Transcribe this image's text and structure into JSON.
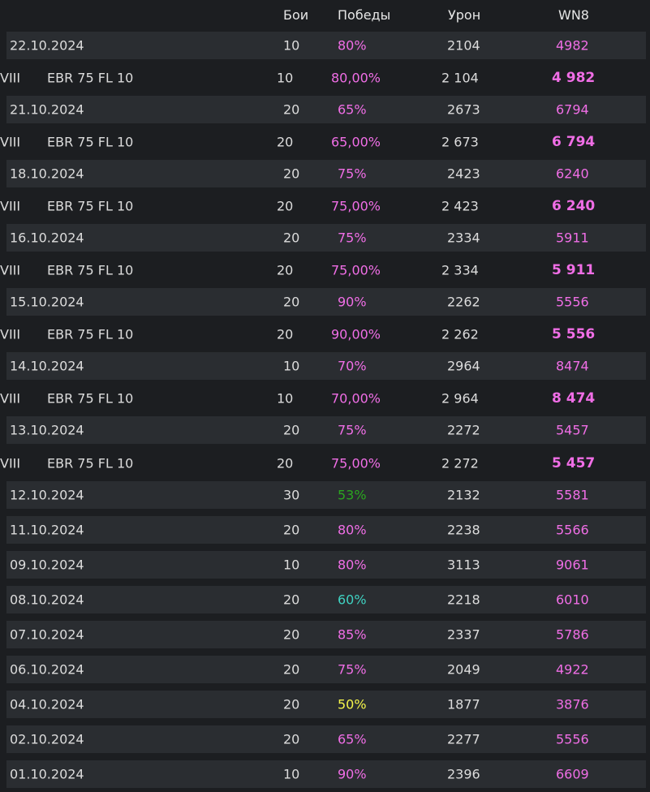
{
  "header": {
    "battles": "Бои",
    "wins": "Победы",
    "damage": "Урон",
    "wn8": "WN8"
  },
  "colors": {
    "purple": "#f06ee6",
    "green": "#2aa61f",
    "teal": "#3fd2c2",
    "yellow": "#f5f54a"
  },
  "rows": [
    {
      "type": "date",
      "date": "22.10.2024",
      "battles": "10",
      "wins": "80%",
      "damage": "2104",
      "wn8": "4982",
      "wins_color": "#f06ee6"
    },
    {
      "type": "tank",
      "tier": "VIII",
      "name": "EBR 75 FL 10",
      "battles": "10",
      "wins": "80,00%",
      "damage": "2 104",
      "wn8": "4 982",
      "wins_color": "#f06ee6"
    },
    {
      "type": "date",
      "date": "21.10.2024",
      "battles": "20",
      "wins": "65%",
      "damage": "2673",
      "wn8": "6794",
      "wins_color": "#f06ee6"
    },
    {
      "type": "tank",
      "tier": "VIII",
      "name": "EBR 75 FL 10",
      "battles": "20",
      "wins": "65,00%",
      "damage": "2 673",
      "wn8": "6 794",
      "wins_color": "#f06ee6"
    },
    {
      "type": "date",
      "date": "18.10.2024",
      "battles": "20",
      "wins": "75%",
      "damage": "2423",
      "wn8": "6240",
      "wins_color": "#f06ee6"
    },
    {
      "type": "tank",
      "tier": "VIII",
      "name": "EBR 75 FL 10",
      "battles": "20",
      "wins": "75,00%",
      "damage": "2 423",
      "wn8": "6 240",
      "wins_color": "#f06ee6"
    },
    {
      "type": "date",
      "date": "16.10.2024",
      "battles": "20",
      "wins": "75%",
      "damage": "2334",
      "wn8": "5911",
      "wins_color": "#f06ee6"
    },
    {
      "type": "tank",
      "tier": "VIII",
      "name": "EBR 75 FL 10",
      "battles": "20",
      "wins": "75,00%",
      "damage": "2 334",
      "wn8": "5 911",
      "wins_color": "#f06ee6"
    },
    {
      "type": "date",
      "date": "15.10.2024",
      "battles": "20",
      "wins": "90%",
      "damage": "2262",
      "wn8": "5556",
      "wins_color": "#f06ee6"
    },
    {
      "type": "tank",
      "tier": "VIII",
      "name": "EBR 75 FL 10",
      "battles": "20",
      "wins": "90,00%",
      "damage": "2 262",
      "wn8": "5 556",
      "wins_color": "#f06ee6"
    },
    {
      "type": "date",
      "date": "14.10.2024",
      "battles": "10",
      "wins": "70%",
      "damage": "2964",
      "wn8": "8474",
      "wins_color": "#f06ee6"
    },
    {
      "type": "tank",
      "tier": "VIII",
      "name": "EBR 75 FL 10",
      "battles": "10",
      "wins": "70,00%",
      "damage": "2 964",
      "wn8": "8 474",
      "wins_color": "#f06ee6"
    },
    {
      "type": "date",
      "date": "13.10.2024",
      "battles": "20",
      "wins": "75%",
      "damage": "2272",
      "wn8": "5457",
      "wins_color": "#f06ee6"
    },
    {
      "type": "tank",
      "tier": "VIII",
      "name": "EBR 75 FL 10",
      "battles": "20",
      "wins": "75,00%",
      "damage": "2 272",
      "wn8": "5 457",
      "wins_color": "#f06ee6"
    },
    {
      "type": "date",
      "date": "12.10.2024",
      "battles": "30",
      "wins": "53%",
      "damage": "2132",
      "wn8": "5581",
      "wins_color": "#2aa61f"
    },
    {
      "type": "date",
      "date": "11.10.2024",
      "battles": "20",
      "wins": "80%",
      "damage": "2238",
      "wn8": "5566",
      "wins_color": "#f06ee6"
    },
    {
      "type": "date",
      "date": "09.10.2024",
      "battles": "10",
      "wins": "80%",
      "damage": "3113",
      "wn8": "9061",
      "wins_color": "#f06ee6"
    },
    {
      "type": "date",
      "date": "08.10.2024",
      "battles": "20",
      "wins": "60%",
      "damage": "2218",
      "wn8": "6010",
      "wins_color": "#3fd2c2"
    },
    {
      "type": "date",
      "date": "07.10.2024",
      "battles": "20",
      "wins": "85%",
      "damage": "2337",
      "wn8": "5786",
      "wins_color": "#f06ee6"
    },
    {
      "type": "date",
      "date": "06.10.2024",
      "battles": "20",
      "wins": "75%",
      "damage": "2049",
      "wn8": "4922",
      "wins_color": "#f06ee6"
    },
    {
      "type": "date",
      "date": "04.10.2024",
      "battles": "20",
      "wins": "50%",
      "damage": "1877",
      "wn8": "3876",
      "wins_color": "#f5f54a"
    },
    {
      "type": "date",
      "date": "02.10.2024",
      "battles": "20",
      "wins": "65%",
      "damage": "2277",
      "wn8": "5556",
      "wins_color": "#f06ee6"
    },
    {
      "type": "date",
      "date": "01.10.2024",
      "battles": "10",
      "wins": "90%",
      "damage": "2396",
      "wn8": "6609",
      "wins_color": "#f06ee6"
    }
  ]
}
